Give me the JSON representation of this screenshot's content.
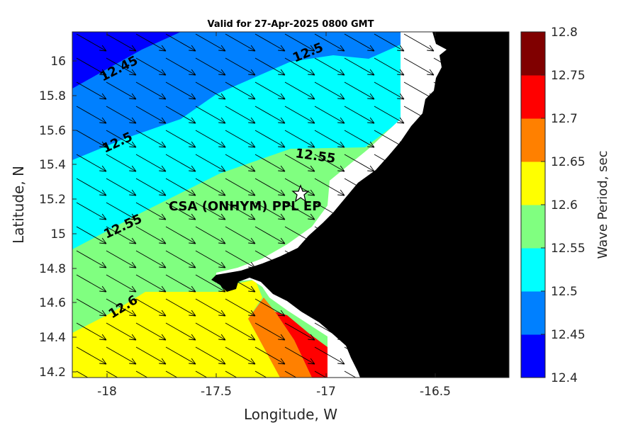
{
  "title": "Valid for 27-Apr-2025 0800 GMT",
  "chart_data": {
    "type": "heatmap",
    "title": "Valid for 27-Apr-2025 0800 GMT",
    "xlabel": "Longitude, W",
    "ylabel": "Latitude, N",
    "xlim": [
      -18.2,
      -16.2
    ],
    "ylim": [
      14.17,
      16.17
    ],
    "x_ticks": [
      "-18",
      "-17.5",
      "-17",
      "-16.5"
    ],
    "y_ticks": [
      "14.2",
      "14.4",
      "14.6",
      "14.8",
      "15",
      "15.2",
      "15.4",
      "15.6",
      "15.8",
      "16"
    ],
    "colorbar": {
      "label": "Wave Period, sec",
      "ticks": [
        "12.4",
        "12.45",
        "12.5",
        "12.55",
        "12.6",
        "12.65",
        "12.7",
        "12.75",
        "12.8"
      ],
      "colors": [
        "#0000ff",
        "#0080ff",
        "#00ffff",
        "#80ff80",
        "#ffff00",
        "#ff8000",
        "#ff0000",
        "#800000"
      ]
    },
    "contour_labels": [
      {
        "text": "12.45",
        "lon": -18.1,
        "lat": 15.97
      },
      {
        "text": "12.5",
        "lon": -17.18,
        "lat": 16.0
      },
      {
        "text": "12.5",
        "lon": -18.07,
        "lat": 15.55
      },
      {
        "text": "12.55",
        "lon": -17.1,
        "lat": 15.43
      },
      {
        "text": "12.55",
        "lon": -18.06,
        "lat": 15.02
      },
      {
        "text": "12.6",
        "lon": -18.01,
        "lat": 14.54
      }
    ],
    "site": {
      "label": "CSA (ONHYM) PPL EP",
      "lon": -17.12,
      "lat": 15.22,
      "marker": "star-icon"
    },
    "land_color": "#000000",
    "arrow_direction": "toward south-east"
  }
}
